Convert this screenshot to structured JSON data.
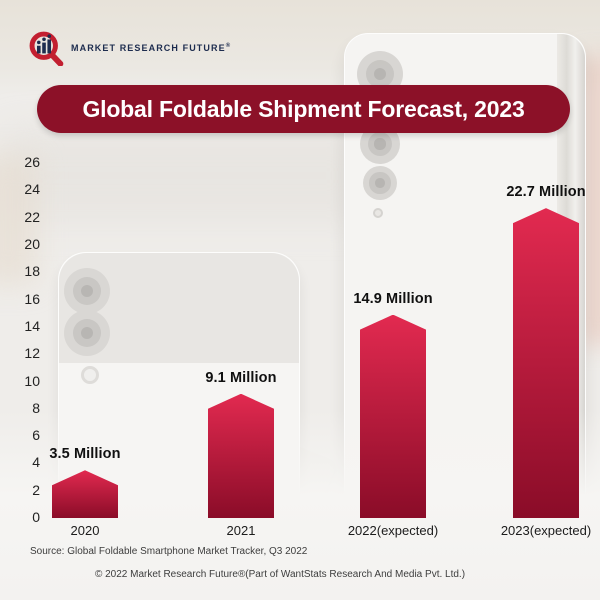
{
  "header": {
    "brand": "MARKET RESEARCH FUTURE",
    "registered_mark": "®",
    "title": "Global Foldable Shipment Forecast, 2023"
  },
  "chart_data": {
    "type": "bar",
    "title": "Global Foldable Shipment Forecast, 2023",
    "categories": [
      "2020",
      "2021",
      "2022(expected)",
      "2023(expected)"
    ],
    "values": [
      3.5,
      9.1,
      14.9,
      22.7
    ],
    "value_labels": [
      "3.5 Million",
      "9.1 Million",
      "14.9 Million",
      "22.7 Million"
    ],
    "unit": "Million",
    "xlabel": "",
    "ylabel": "",
    "ylim": [
      0,
      26
    ],
    "yticks": [
      0,
      2,
      4,
      6,
      8,
      10,
      12,
      14,
      16,
      18,
      20,
      22,
      24,
      26
    ],
    "grid": false,
    "legend": false,
    "colors": {
      "bar_gradient_top": "#E22A50",
      "bar_gradient_bottom": "#8A0C28",
      "banner_background": "#8C1128",
      "banner_text": "#FFFFFF",
      "label_text": "#101010"
    }
  },
  "footer": {
    "source": "Source: Global Foldable Smartphone Market Tracker, Q3 2022",
    "copyright": "© 2022 Market Research Future®(Part of WantStats Research And Media Pvt. Ltd.)"
  }
}
